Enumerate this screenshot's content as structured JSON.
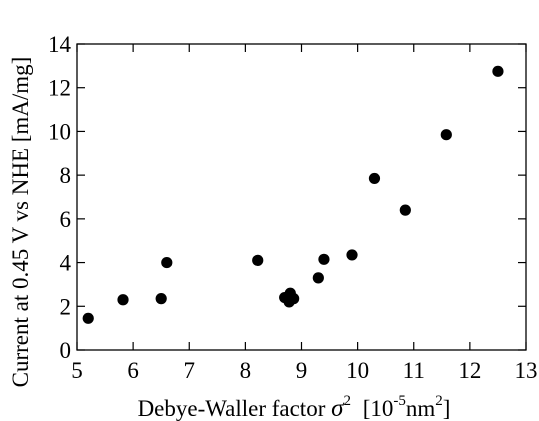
{
  "chart_data": {
    "type": "scatter",
    "title": "",
    "xlabel": "Debye-Waller factor",
    "xlabel_symbol": "σ",
    "xlabel_symbol_sup": "2",
    "xlabel_unit_pre": "[10",
    "xlabel_unit_exp": "-5",
    "xlabel_unit_mid": "nm",
    "xlabel_unit_sup": "2",
    "xlabel_unit_post": "]",
    "ylabel": "Current at 0.45 V vs NHE [mA/mg]",
    "xlim": [
      5,
      13
    ],
    "ylim": [
      0,
      14
    ],
    "xticks": [
      5,
      6,
      7,
      8,
      9,
      10,
      11,
      12,
      13
    ],
    "yticks": [
      0,
      2,
      4,
      6,
      8,
      10,
      12,
      14
    ],
    "grid": false,
    "legend": "none",
    "marker_color": "#000000",
    "series": [
      {
        "points": [
          {
            "x": 5.2,
            "y": 1.45
          },
          {
            "x": 5.82,
            "y": 2.3
          },
          {
            "x": 6.5,
            "y": 2.35
          },
          {
            "x": 6.6,
            "y": 4.0
          },
          {
            "x": 8.22,
            "y": 4.1
          },
          {
            "x": 8.7,
            "y": 2.4
          },
          {
            "x": 8.78,
            "y": 2.2
          },
          {
            "x": 8.8,
            "y": 2.6
          },
          {
            "x": 8.86,
            "y": 2.35
          },
          {
            "x": 9.3,
            "y": 3.3
          },
          {
            "x": 9.4,
            "y": 4.15
          },
          {
            "x": 9.9,
            "y": 4.35
          },
          {
            "x": 10.3,
            "y": 7.85
          },
          {
            "x": 10.85,
            "y": 6.4
          },
          {
            "x": 11.58,
            "y": 9.85
          },
          {
            "x": 12.5,
            "y": 12.75
          }
        ]
      }
    ]
  }
}
